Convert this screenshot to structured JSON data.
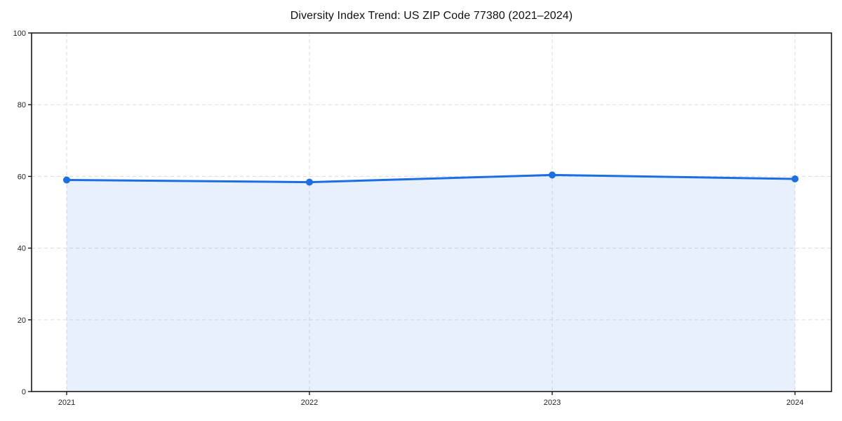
{
  "chart_data": {
    "type": "area",
    "title": "Diversity Index Trend: US ZIP Code 77380 (2021–2024)",
    "xlabel": "",
    "ylabel": "",
    "categories": [
      "2021",
      "2022",
      "2023",
      "2024"
    ],
    "series": [
      {
        "name": "Diversity Index",
        "values": [
          59.0,
          58.4,
          60.4,
          59.3
        ]
      }
    ],
    "ylim": [
      0,
      100
    ],
    "yticks": [
      0,
      20,
      40,
      60,
      80,
      100
    ],
    "grid": true,
    "grid_style": "dashed",
    "legend_position": "none",
    "line_color": "#1b6ee3",
    "marker_color": "#1b6ee3",
    "fill_color": "rgba(27,110,227,0.10)",
    "gridline_color": "#e1e1e1",
    "axis_color": "#1a1a1a",
    "tick_label_color": "#222222",
    "title_color": "#111111",
    "background_color": "#ffffff"
  }
}
